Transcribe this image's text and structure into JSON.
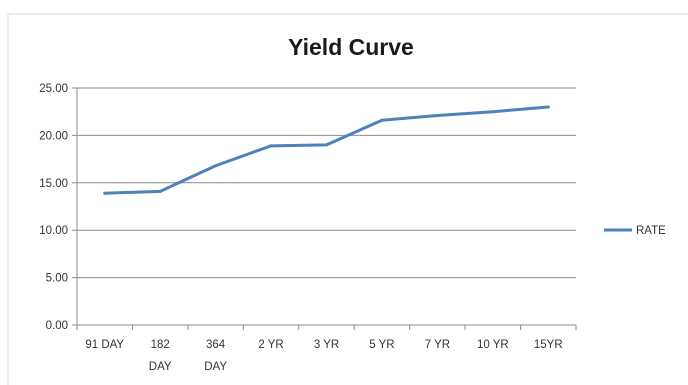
{
  "chart_data": {
    "type": "line",
    "title": "Yield Curve",
    "xlabel": "",
    "ylabel": "",
    "categories": [
      [
        "91 DAY"
      ],
      [
        "182",
        "DAY"
      ],
      [
        "364",
        "DAY"
      ],
      [
        "2 YR"
      ],
      [
        "3 YR"
      ],
      [
        "5 YR"
      ],
      [
        "7 YR"
      ],
      [
        "10 YR"
      ],
      [
        "15YR"
      ]
    ],
    "series": [
      {
        "name": "RATE",
        "color": "#4f81bd",
        "values": [
          13.9,
          14.1,
          16.8,
          18.9,
          19.0,
          21.6,
          22.1,
          22.5,
          23.0
        ]
      }
    ],
    "ylim": [
      0,
      25
    ],
    "yticks": [
      "0.00",
      "5.00",
      "10.00",
      "15.00",
      "20.00",
      "25.00"
    ],
    "ytick_values": [
      0,
      5,
      10,
      15,
      20,
      25
    ],
    "grid": true,
    "legend": "right"
  }
}
